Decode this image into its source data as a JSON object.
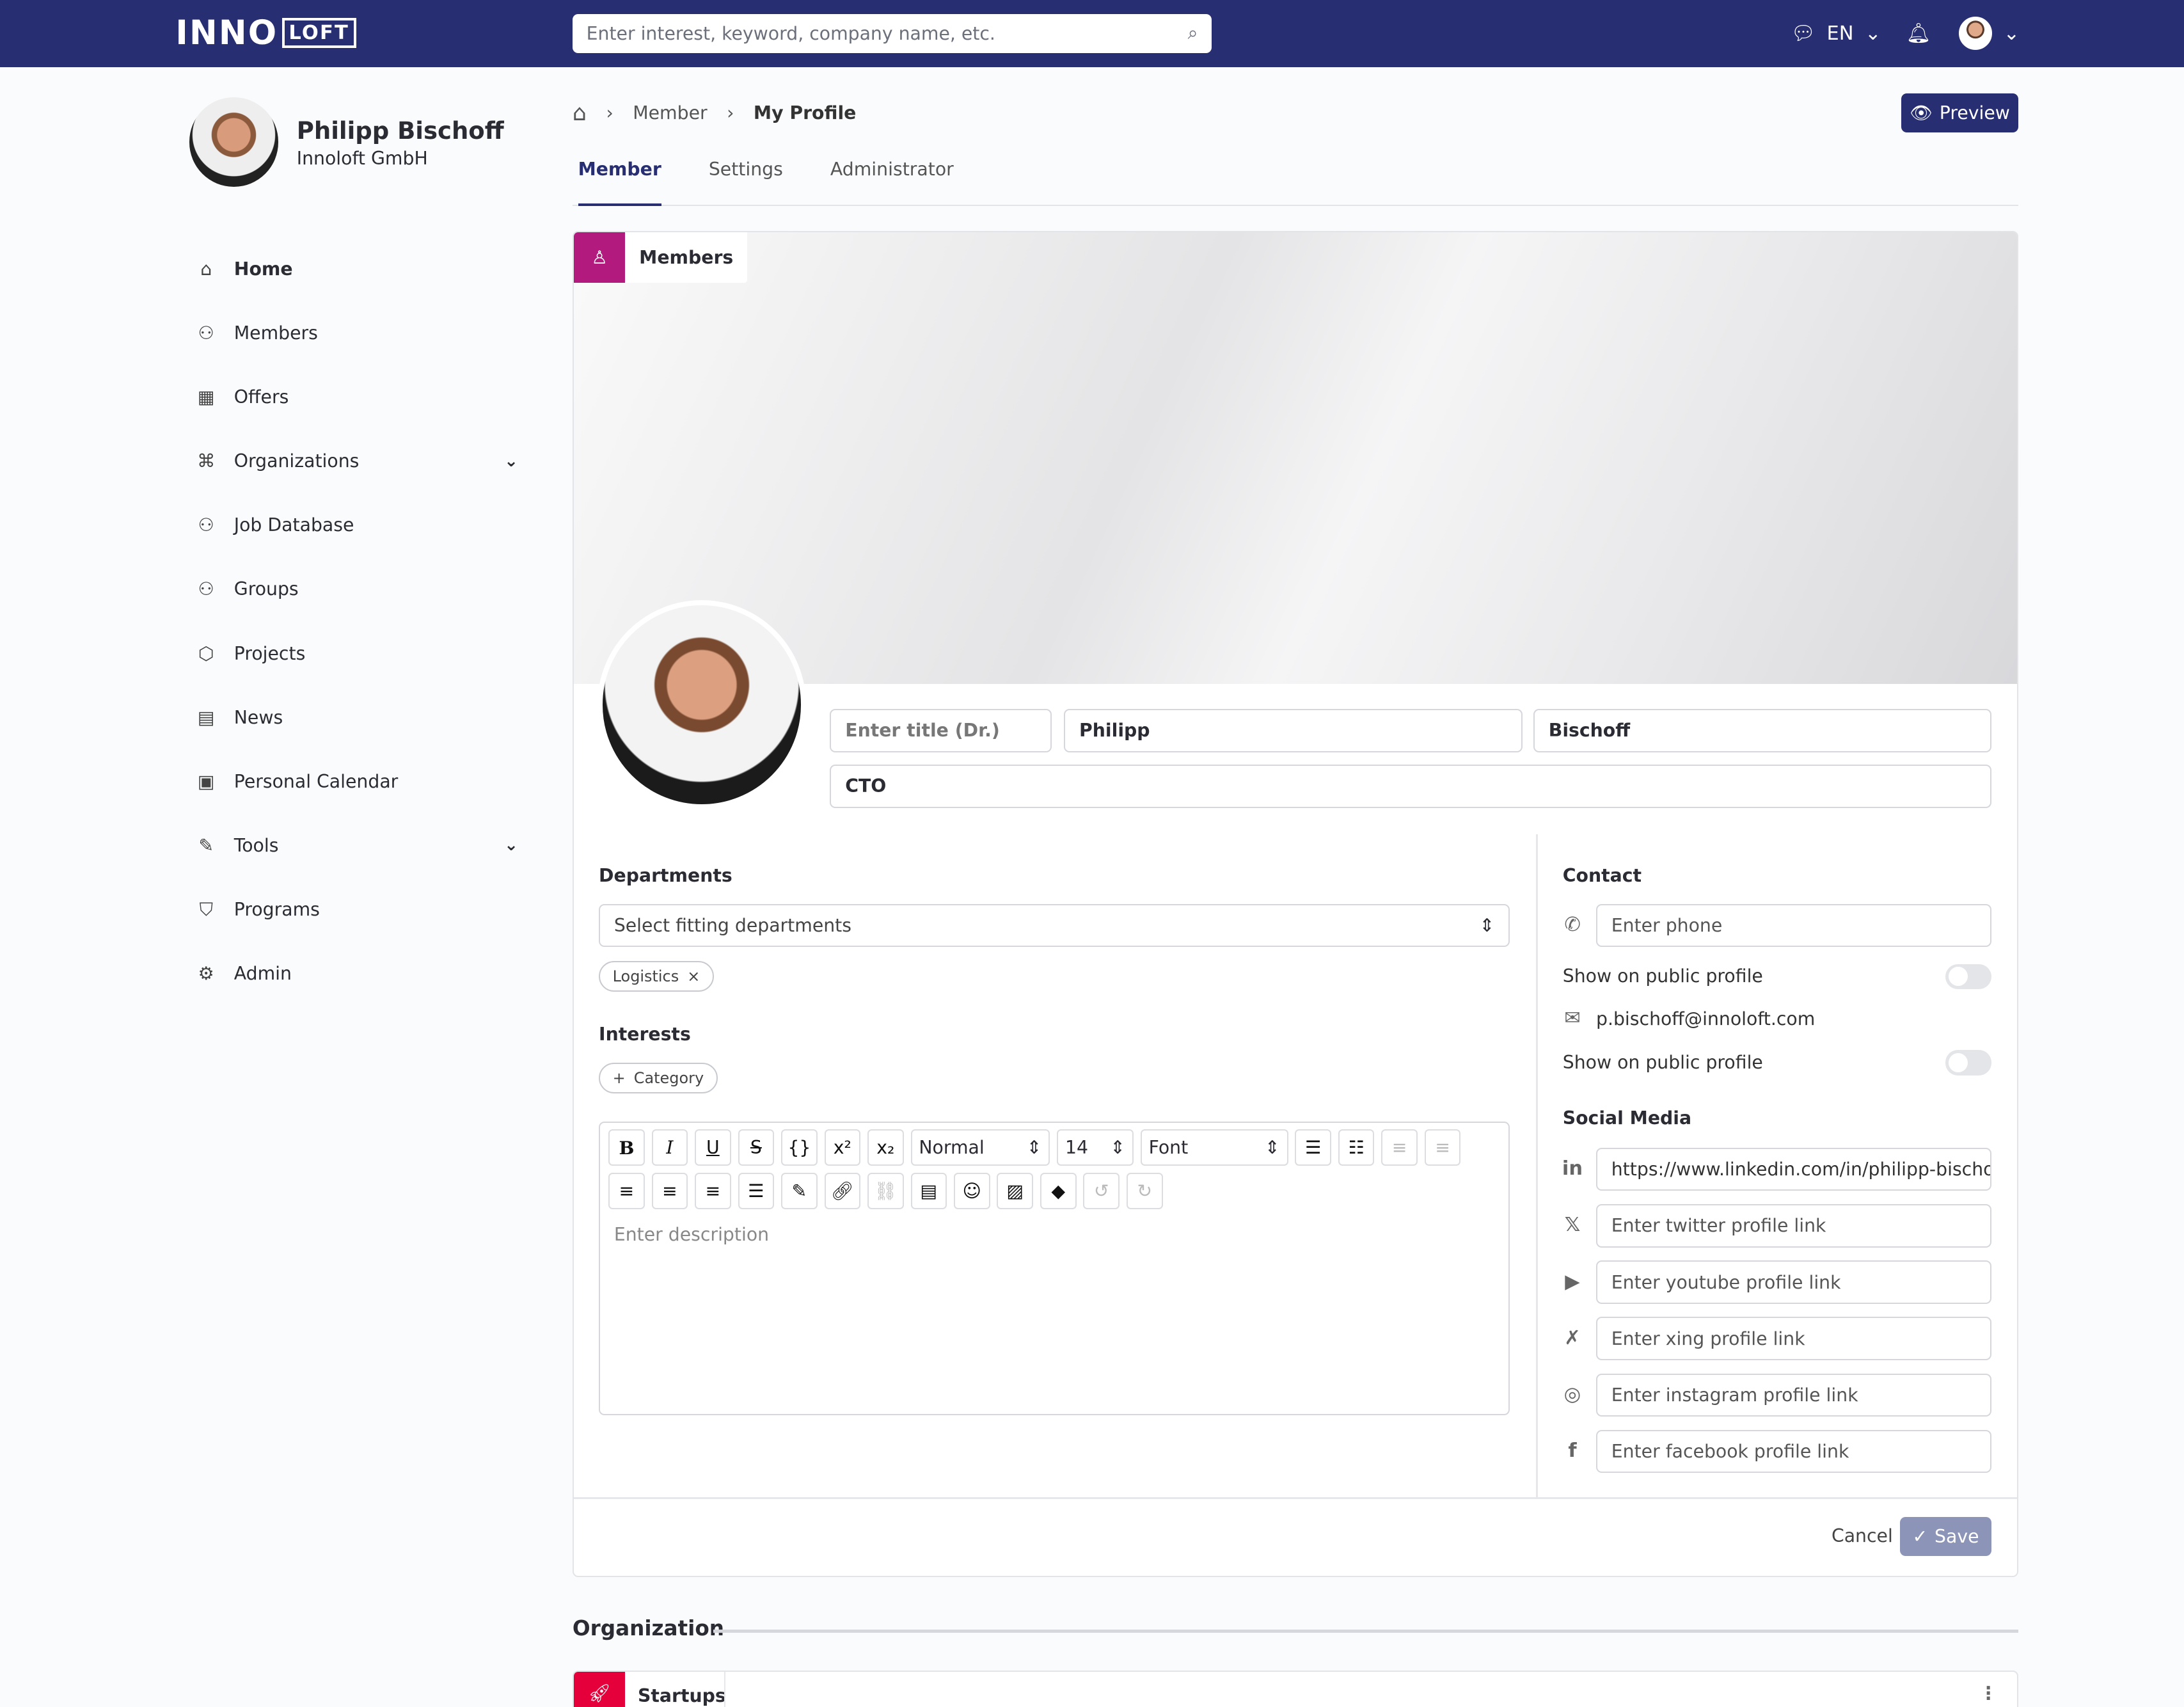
{
  "header": {
    "logo": "INNO",
    "logo_box": "LOFT",
    "search_placeholder": "Enter interest, keyword, company name, etc.",
    "language": "EN"
  },
  "profile": {
    "name": "Philipp Bischoff",
    "org": "Innoloft GmbH"
  },
  "sidebar": {
    "items": [
      {
        "label": "Home",
        "icon": "⌂",
        "active": true
      },
      {
        "label": "Members",
        "icon": "⚇"
      },
      {
        "label": "Offers",
        "icon": "▦"
      },
      {
        "label": "Organizations",
        "icon": "⌘",
        "chevron": true
      },
      {
        "label": "Job Database",
        "icon": "⚇"
      },
      {
        "label": "Groups",
        "icon": "⚇"
      },
      {
        "label": "Projects",
        "icon": "⬡"
      },
      {
        "label": "News",
        "icon": "▤"
      },
      {
        "label": "Personal Calendar",
        "icon": "▣"
      },
      {
        "label": "Tools",
        "icon": "✎",
        "chevron": true
      },
      {
        "label": "Programs",
        "icon": "⛉"
      },
      {
        "label": "Admin",
        "icon": "⚙"
      }
    ]
  },
  "breadcrumb": {
    "items": [
      "Member",
      "My Profile"
    ]
  },
  "preview_label": "Preview",
  "tabs": [
    "Member",
    "Settings",
    "Administrator"
  ],
  "card": {
    "badge": "Members",
    "title_placeholder": "Enter title (Dr.)",
    "first_name": "Philipp",
    "last_name": "Bischoff",
    "position": "CTO",
    "departments_label": "Departments",
    "departments_placeholder": "Select fitting departments",
    "department_chip": "Logistics",
    "interests_label": "Interests",
    "category_button": "Category",
    "editor": {
      "style": "Normal",
      "size": "14",
      "font": "Font",
      "placeholder": "Enter description"
    },
    "contact_label": "Contact",
    "phone_placeholder": "Enter phone",
    "show_public": "Show on public profile",
    "email": "p.bischoff@innoloft.com",
    "social_label": "Social Media",
    "social": [
      {
        "icon": "in",
        "value": "https://www.linkedin.com/in/philipp-bischoff",
        "placeholder": ""
      },
      {
        "icon": "𝕏",
        "value": "",
        "placeholder": "Enter twitter profile link"
      },
      {
        "icon": "▶",
        "value": "",
        "placeholder": "Enter youtube profile link"
      },
      {
        "icon": "✗",
        "value": "",
        "placeholder": "Enter xing profile link"
      },
      {
        "icon": "◎",
        "value": "",
        "placeholder": "Enter instagram profile link"
      },
      {
        "icon": "f",
        "value": "",
        "placeholder": "Enter facebook profile link"
      }
    ],
    "cancel": "Cancel",
    "save": "Save"
  },
  "organization": {
    "title": "Organization",
    "badge": "Startups"
  },
  "colors": {
    "brand": "#272e72",
    "members": "#b21a7e",
    "startups": "#e5003c"
  }
}
